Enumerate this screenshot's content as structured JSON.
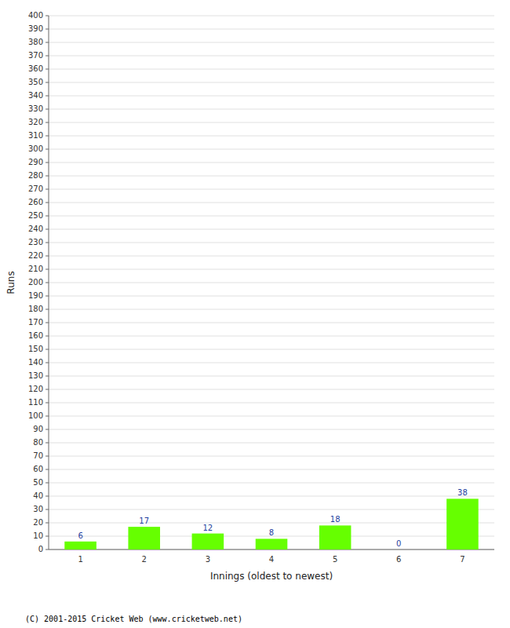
{
  "chart_data": {
    "type": "bar",
    "categories": [
      "1",
      "2",
      "3",
      "4",
      "5",
      "6",
      "7"
    ],
    "values": [
      6,
      17,
      12,
      8,
      18,
      0,
      38
    ],
    "color": "#66ff00",
    "xlabel": "Innings (oldest to newest)",
    "ylabel": "Runs",
    "ylim": [
      0,
      400
    ],
    "yticks": [
      0,
      10,
      20,
      30,
      40,
      50,
      60,
      70,
      80,
      90,
      100,
      110,
      120,
      130,
      140,
      150,
      160,
      170,
      180,
      190,
      200,
      210,
      220,
      230,
      240,
      250,
      260,
      270,
      280,
      290,
      300,
      310,
      320,
      330,
      340,
      350,
      360,
      370,
      380,
      390,
      400
    ],
    "grid": true,
    "data_labels": true,
    "annotations": [
      "(C) 2001-2015 Cricket Web (www.cricketweb.net)"
    ]
  }
}
